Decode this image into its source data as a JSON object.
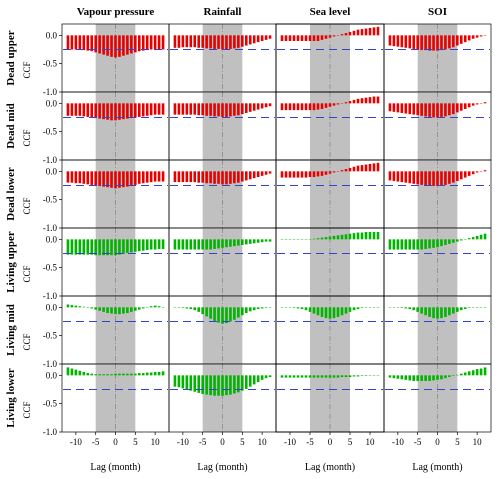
{
  "chart_data": {
    "type": "bar",
    "x_lags": [
      -12,
      -11,
      -10,
      -9,
      -8,
      -7,
      -6,
      -5,
      -4,
      -3,
      -2,
      -1,
      0,
      1,
      2,
      3,
      4,
      5,
      6,
      7,
      8,
      9,
      10,
      11,
      12
    ],
    "columns": [
      "Vapour pressure",
      "Rainfall",
      "Sea level",
      "SOI"
    ],
    "rows": [
      "Dead upper",
      "Dead mid",
      "Dead lower",
      "Living upper",
      "Living mid",
      "Living lower"
    ],
    "ylabel": "CCF",
    "xlabel": "Lag (month)",
    "ylim": [
      -1.0,
      0.2
    ],
    "yticks": [
      "0.0",
      "-0.5",
      "-1.0"
    ],
    "xticks": [
      "-10",
      "-5",
      "0",
      "5",
      "10"
    ],
    "shaded_lag_range": [
      -5,
      5
    ],
    "significance_level": -0.25,
    "colors": {
      "dead": "#e60000",
      "living": "#00b400",
      "shade": "#c0c0c0",
      "significance": "#3344cc",
      "zero_line": "#888888"
    },
    "panels": [
      [
        [
          -0.25,
          -0.25,
          -0.25,
          -0.25,
          -0.26,
          -0.27,
          -0.28,
          -0.3,
          -0.32,
          -0.34,
          -0.36,
          -0.38,
          -0.39,
          -0.38,
          -0.36,
          -0.34,
          -0.32,
          -0.3,
          -0.28,
          -0.27,
          -0.26,
          -0.25,
          -0.25,
          -0.25,
          -0.25
        ],
        [
          -0.22,
          -0.22,
          -0.21,
          -0.21,
          -0.21,
          -0.21,
          -0.22,
          -0.22,
          -0.23,
          -0.23,
          -0.24,
          -0.24,
          -0.25,
          -0.25,
          -0.24,
          -0.23,
          -0.22,
          -0.2,
          -0.18,
          -0.16,
          -0.14,
          -0.12,
          -0.1,
          -0.08,
          -0.06
        ],
        [
          -0.1,
          -0.1,
          -0.1,
          -0.1,
          -0.1,
          -0.1,
          -0.1,
          -0.1,
          -0.1,
          -0.1,
          -0.08,
          -0.06,
          -0.04,
          -0.02,
          0.0,
          0.02,
          0.04,
          0.06,
          0.08,
          0.1,
          0.11,
          0.12,
          0.13,
          0.14,
          0.15
        ],
        [
          -0.18,
          -0.19,
          -0.2,
          -0.21,
          -0.22,
          -0.23,
          -0.24,
          -0.25,
          -0.26,
          -0.26,
          -0.27,
          -0.27,
          -0.27,
          -0.26,
          -0.25,
          -0.23,
          -0.21,
          -0.18,
          -0.15,
          -0.12,
          -0.09,
          -0.06,
          -0.04,
          -0.02,
          0.0
        ]
      ],
      [
        [
          -0.22,
          -0.22,
          -0.22,
          -0.22,
          -0.23,
          -0.24,
          -0.25,
          -0.26,
          -0.27,
          -0.28,
          -0.29,
          -0.3,
          -0.3,
          -0.29,
          -0.28,
          -0.27,
          -0.26,
          -0.25,
          -0.24,
          -0.23,
          -0.22,
          -0.21,
          -0.2,
          -0.2,
          -0.2
        ],
        [
          -0.2,
          -0.2,
          -0.2,
          -0.2,
          -0.2,
          -0.2,
          -0.21,
          -0.21,
          -0.22,
          -0.22,
          -0.23,
          -0.23,
          -0.24,
          -0.24,
          -0.23,
          -0.22,
          -0.21,
          -0.19,
          -0.17,
          -0.15,
          -0.13,
          -0.11,
          -0.09,
          -0.07,
          -0.05
        ],
        [
          -0.12,
          -0.12,
          -0.12,
          -0.12,
          -0.12,
          -0.12,
          -0.12,
          -0.12,
          -0.12,
          -0.11,
          -0.1,
          -0.08,
          -0.06,
          -0.04,
          -0.02,
          0.0,
          0.02,
          0.04,
          0.06,
          0.08,
          0.09,
          0.1,
          0.11,
          0.12,
          0.12
        ],
        [
          -0.14,
          -0.15,
          -0.16,
          -0.17,
          -0.18,
          -0.19,
          -0.2,
          -0.21,
          -0.22,
          -0.23,
          -0.24,
          -0.25,
          -0.25,
          -0.24,
          -0.23,
          -0.21,
          -0.19,
          -0.16,
          -0.13,
          -0.1,
          -0.07,
          -0.04,
          -0.02,
          0.0,
          0.02
        ]
      ],
      [
        [
          -0.2,
          -0.2,
          -0.21,
          -0.21,
          -0.22,
          -0.23,
          -0.24,
          -0.25,
          -0.26,
          -0.27,
          -0.28,
          -0.29,
          -0.3,
          -0.29,
          -0.28,
          -0.27,
          -0.26,
          -0.24,
          -0.22,
          -0.21,
          -0.2,
          -0.19,
          -0.18,
          -0.18,
          -0.18
        ],
        [
          -0.19,
          -0.19,
          -0.19,
          -0.19,
          -0.19,
          -0.19,
          -0.2,
          -0.2,
          -0.21,
          -0.21,
          -0.22,
          -0.22,
          -0.23,
          -0.23,
          -0.22,
          -0.21,
          -0.2,
          -0.18,
          -0.16,
          -0.14,
          -0.12,
          -0.1,
          -0.08,
          -0.06,
          -0.04
        ],
        [
          -0.11,
          -0.11,
          -0.11,
          -0.11,
          -0.11,
          -0.11,
          -0.11,
          -0.1,
          -0.1,
          -0.09,
          -0.08,
          -0.06,
          -0.04,
          -0.02,
          0.0,
          0.02,
          0.04,
          0.06,
          0.08,
          0.1,
          0.11,
          0.12,
          0.13,
          0.14,
          0.15
        ],
        [
          -0.16,
          -0.17,
          -0.18,
          -0.19,
          -0.2,
          -0.21,
          -0.22,
          -0.23,
          -0.24,
          -0.25,
          -0.25,
          -0.26,
          -0.26,
          -0.25,
          -0.24,
          -0.22,
          -0.2,
          -0.17,
          -0.14,
          -0.11,
          -0.08,
          -0.05,
          -0.02,
          0.0,
          0.02
        ]
      ],
      [
        [
          -0.27,
          -0.27,
          -0.27,
          -0.27,
          -0.27,
          -0.27,
          -0.27,
          -0.28,
          -0.28,
          -0.28,
          -0.28,
          -0.28,
          -0.28,
          -0.27,
          -0.26,
          -0.24,
          -0.23,
          -0.22,
          -0.21,
          -0.2,
          -0.19,
          -0.18,
          -0.18,
          -0.17,
          -0.17
        ],
        [
          -0.18,
          -0.18,
          -0.18,
          -0.18,
          -0.18,
          -0.18,
          -0.18,
          -0.18,
          -0.18,
          -0.18,
          -0.17,
          -0.16,
          -0.15,
          -0.14,
          -0.13,
          -0.12,
          -0.11,
          -0.1,
          -0.09,
          -0.08,
          -0.07,
          -0.06,
          -0.05,
          -0.04,
          -0.04
        ],
        [
          0.0,
          0.0,
          0.0,
          0.0,
          0.0,
          0.0,
          0.0,
          0.0,
          0.01,
          0.02,
          0.03,
          0.04,
          0.05,
          0.06,
          0.07,
          0.08,
          0.09,
          0.1,
          0.11,
          0.12,
          0.12,
          0.13,
          0.13,
          0.13,
          0.13
        ],
        [
          -0.18,
          -0.18,
          -0.18,
          -0.18,
          -0.18,
          -0.18,
          -0.18,
          -0.18,
          -0.18,
          -0.17,
          -0.16,
          -0.15,
          -0.14,
          -0.12,
          -0.1,
          -0.08,
          -0.06,
          -0.04,
          -0.02,
          0.0,
          0.02,
          0.04,
          0.06,
          0.08,
          0.1
        ]
      ],
      [
        [
          0.05,
          0.04,
          0.03,
          0.02,
          0.01,
          0.0,
          -0.02,
          -0.04,
          -0.06,
          -0.08,
          -0.1,
          -0.11,
          -0.12,
          -0.12,
          -0.11,
          -0.1,
          -0.08,
          -0.06,
          -0.04,
          -0.02,
          0.0,
          0.02,
          0.03,
          0.02,
          0.0
        ],
        [
          0.0,
          0.0,
          -0.01,
          -0.02,
          -0.03,
          -0.05,
          -0.08,
          -0.12,
          -0.16,
          -0.2,
          -0.24,
          -0.27,
          -0.29,
          -0.28,
          -0.25,
          -0.22,
          -0.18,
          -0.14,
          -0.1,
          -0.07,
          -0.05,
          -0.03,
          -0.02,
          -0.01,
          0.0
        ],
        [
          0.0,
          0.0,
          0.0,
          -0.01,
          -0.02,
          -0.03,
          -0.05,
          -0.08,
          -0.11,
          -0.14,
          -0.17,
          -0.19,
          -0.2,
          -0.19,
          -0.17,
          -0.14,
          -0.11,
          -0.08,
          -0.05,
          -0.03,
          -0.01,
          0.0,
          0.0,
          0.0,
          0.0
        ],
        [
          0.0,
          0.0,
          0.0,
          -0.01,
          -0.02,
          -0.03,
          -0.05,
          -0.08,
          -0.11,
          -0.14,
          -0.17,
          -0.19,
          -0.2,
          -0.19,
          -0.17,
          -0.14,
          -0.11,
          -0.08,
          -0.05,
          -0.03,
          -0.01,
          0.0,
          0.0,
          0.0,
          0.0
        ]
      ],
      [
        [
          0.14,
          0.12,
          0.1,
          0.08,
          0.06,
          0.04,
          0.03,
          0.02,
          0.02,
          0.02,
          0.02,
          0.02,
          0.03,
          0.03,
          0.03,
          0.03,
          0.03,
          0.03,
          0.04,
          0.04,
          0.05,
          0.05,
          0.06,
          0.06,
          0.07
        ],
        [
          -0.2,
          -0.21,
          -0.23,
          -0.25,
          -0.27,
          -0.29,
          -0.31,
          -0.33,
          -0.34,
          -0.35,
          -0.36,
          -0.36,
          -0.36,
          -0.35,
          -0.34,
          -0.32,
          -0.3,
          -0.27,
          -0.24,
          -0.2,
          -0.16,
          -0.12,
          -0.08,
          -0.05,
          -0.03
        ],
        [
          -0.04,
          -0.04,
          -0.04,
          -0.04,
          -0.04,
          -0.04,
          -0.04,
          -0.04,
          -0.04,
          -0.04,
          -0.04,
          -0.04,
          -0.04,
          -0.04,
          -0.04,
          -0.03,
          -0.03,
          -0.03,
          -0.02,
          -0.02,
          -0.01,
          -0.01,
          0.0,
          0.0,
          0.0
        ],
        [
          -0.04,
          -0.05,
          -0.06,
          -0.07,
          -0.08,
          -0.09,
          -0.1,
          -0.1,
          -0.1,
          -0.1,
          -0.1,
          -0.09,
          -0.08,
          -0.07,
          -0.05,
          -0.03,
          -0.01,
          0.01,
          0.03,
          0.05,
          0.07,
          0.09,
          0.11,
          0.12,
          0.14
        ]
      ]
    ]
  }
}
